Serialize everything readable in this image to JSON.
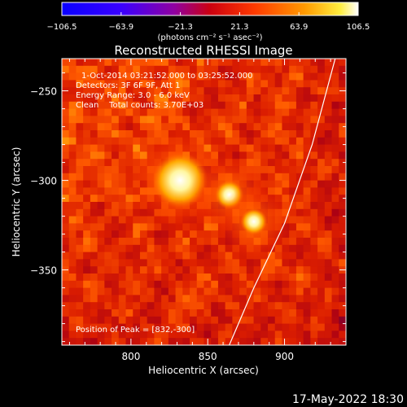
{
  "chart_data": {
    "type": "heatmap",
    "title": "Reconstructed RHESSI Image",
    "xlabel": "Heliocentric X (arcsec)",
    "ylabel": "Heliocentric Y (arcsec)",
    "xlim": [
      755,
      940
    ],
    "ylim": [
      -392,
      -232
    ],
    "x_ticks": [
      800,
      850,
      900
    ],
    "y_ticks": [
      -250,
      -300,
      -350
    ],
    "x_tick_labels": [
      "800",
      "850",
      "900"
    ],
    "y_tick_labels": [
      "−250",
      "−300",
      "−350"
    ],
    "colorbar": {
      "min": -106.5,
      "max": 106.5,
      "tick_values": [
        -106.5,
        -63.9,
        -21.3,
        21.3,
        63.9,
        106.5
      ],
      "tick_labels": [
        "−106.5",
        "−63.9",
        "−21.3",
        "21.3",
        "63.9",
        "106.5"
      ],
      "units_label": "(photons cm⁻² s⁻¹ asec⁻²)",
      "colormap": "blue-purple-red-orange-yellow-white"
    },
    "info_lines": [
      "1-Oct-2014 03:21:52.000 to 03:25:52.000",
      "Detectors: 3F 6F 9F, Att 1",
      "Energy Range: 3.0 - 6.0 keV",
      "Clean    Total counts: 3.70E+03"
    ],
    "peak_label": "Position of Peak = [832,-300]",
    "sources": [
      {
        "x": 832,
        "y": -300,
        "value": 106.5
      },
      {
        "x": 864,
        "y": -308,
        "value": 80
      },
      {
        "x": 880,
        "y": -323,
        "value": 70
      }
    ],
    "limb": [
      [
        933,
        -232
      ],
      [
        918,
        -280
      ],
      [
        900,
        -324
      ],
      [
        880,
        -360
      ],
      [
        864,
        -392
      ]
    ]
  },
  "footer": {
    "date_stamp": "17-May-2022 18:30"
  },
  "colors": {
    "background": "#000000",
    "text": "#ffffff",
    "limb_line": "#ffffff"
  }
}
